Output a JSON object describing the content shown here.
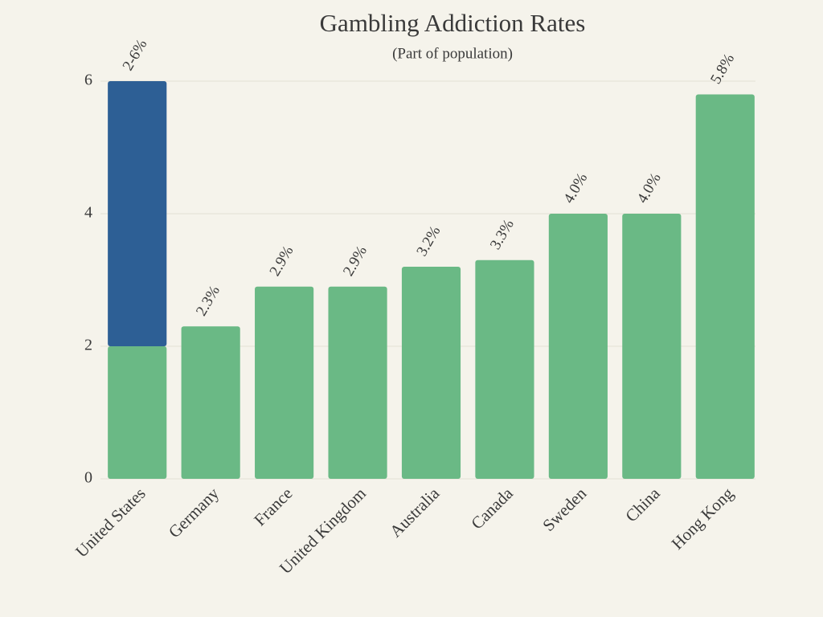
{
  "chart_data": {
    "type": "bar",
    "stacked": true,
    "title": "Gambling Addiction Rates",
    "subtitle": "(Part of population)",
    "categories": [
      "United States",
      "Germany",
      "France",
      "United Kingdom",
      "Australia",
      "Canada",
      "Sweden",
      "China",
      "Hong Kong"
    ],
    "series": [
      {
        "color": "#6ab985",
        "values": [
          2,
          2.3,
          2.9,
          2.9,
          3.2,
          3.3,
          4.0,
          4.0,
          5.8
        ]
      },
      {
        "color": "#2d5f95",
        "values": [
          4,
          null,
          null,
          null,
          null,
          null,
          null,
          null,
          null
        ]
      }
    ],
    "value_labels": [
      "2-6%",
      "2.3%",
      "2.9%",
      "2.9%",
      "3.2%",
      "3.3%",
      "4.0%",
      "4.0%",
      "5.8%"
    ],
    "ylim": [
      0,
      6
    ],
    "yticks": [
      0,
      2,
      4,
      6
    ],
    "grid": true
  }
}
